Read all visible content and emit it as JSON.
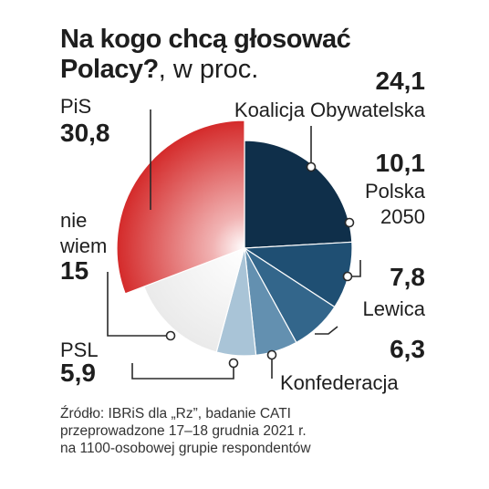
{
  "title": {
    "bold": "Na kogo chcą głosować",
    "bold_line2": "Polacy?",
    "suffix": ", w proc."
  },
  "source": {
    "line1": "Źródło: IBRiS dla „Rz”, badanie CATI",
    "line2": "przeprowadzone 17–18 grudnia 2021 r.",
    "line3": "na 1100-osobowej grupie respondentów"
  },
  "chart_data": {
    "type": "pie",
    "title": "Na kogo chcą głosować Polacy?, w proc.",
    "slices": [
      {
        "label": "Koalicja Obywatelska",
        "value": 24.1,
        "value_text": "24,1",
        "color": "#0f2f4a",
        "label_lines": [
          "Koalicja Obywatelska"
        ]
      },
      {
        "label": "Polska 2050",
        "value": 10.1,
        "value_text": "10,1",
        "color": "#1f4f73",
        "label_lines": [
          "Polska",
          "2050"
        ]
      },
      {
        "label": "Lewica",
        "value": 7.8,
        "value_text": "7,8",
        "color": "#33668b",
        "label_lines": [
          "Lewica"
        ]
      },
      {
        "label": "Konfederacja",
        "value": 6.3,
        "value_text": "6,3",
        "color": "#6390b0",
        "label_lines": [
          "Konfederacja"
        ]
      },
      {
        "label": "PSL",
        "value": 5.9,
        "value_text": "5,9",
        "color": "#a9c4d7",
        "label_lines": [
          "PSL"
        ]
      },
      {
        "label": "nie wiem",
        "value": 15,
        "value_text": "15",
        "color": "#e8e8e8",
        "label_lines": [
          "nie",
          "wiem"
        ]
      },
      {
        "label": "PiS",
        "value": 30.8,
        "value_text": "30,8",
        "color": "#d42a2a",
        "label_lines": [
          "PiS"
        ]
      }
    ]
  }
}
